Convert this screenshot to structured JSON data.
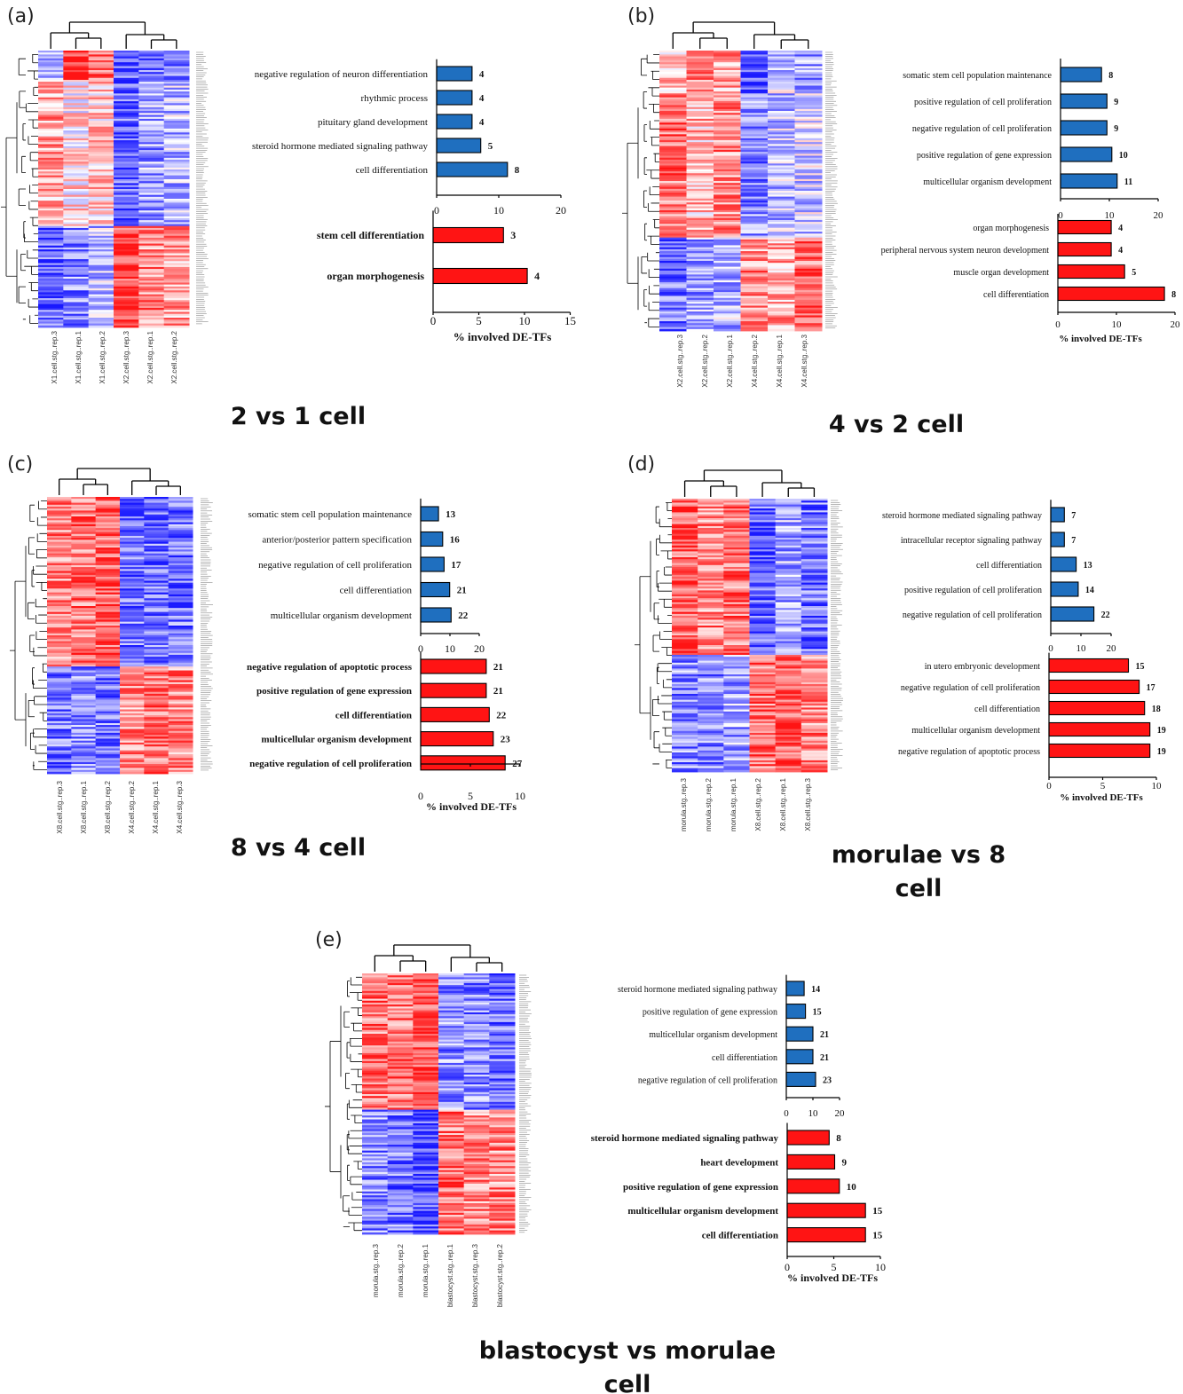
{
  "chart_data": [
    {
      "panel": "(a)",
      "title": "2 vs 1 cell",
      "type": "bar",
      "heatmap_columns": [
        "X1.cell.stg..rep.3",
        "X1.cell.stg..rep.1",
        "X1.cell.stg..rep.2",
        "X2.cell.stg..rep.3",
        "X2.cell.stg..rep.1",
        "X2.cell.stg..rep.2"
      ],
      "blue": {
        "categories": [
          "negative regulation of neuron differentiation",
          "rhythmic process",
          "pituitary gland development",
          "steroid hormone mediated signaling pathway",
          "cell differentiation"
        ],
        "values": [
          4,
          4,
          4,
          5,
          8
        ],
        "pct": [
          5.7,
          5.7,
          5.7,
          7.1,
          11.4
        ],
        "xlim": [
          0,
          20
        ],
        "ticks": [
          0,
          10,
          20
        ]
      },
      "red": {
        "categories": [
          "stem cell differentiation",
          "organ morphogenesis"
        ],
        "values": [
          3,
          4
        ],
        "pct": [
          7.7,
          10.3
        ],
        "xlim": [
          0,
          15
        ],
        "ticks": [
          0,
          5,
          10,
          15
        ]
      },
      "xlabel": "% involved DE-TFs"
    },
    {
      "panel": "(b)",
      "title": "4 vs 2 cell",
      "type": "bar",
      "heatmap_columns": [
        "X2.cell.stg..rep.3",
        "X2.cell.stg..rep.2",
        "X2.cell.stg..rep.1",
        "X4.cell.stg..rep.2",
        "X4.cell.stg..rep.1",
        "X4.cell.stg..rep.3"
      ],
      "blue": {
        "categories": [
          "somatic stem cell population maintenance",
          "positive regulation of cell proliferation",
          "negative regulation of cell proliferation",
          "positive regulation of gene expression",
          "multicellular organism development"
        ],
        "values": [
          8,
          9,
          9,
          10,
          11
        ],
        "pct": [
          8.4,
          9.5,
          9.5,
          10.5,
          11.6
        ],
        "xlim": [
          0,
          20
        ],
        "ticks": [
          0,
          10,
          20
        ]
      },
      "red": {
        "categories": [
          "organ morphogenesis",
          "peripheral nervous system neuron development",
          "muscle organ development",
          "cell differentiation"
        ],
        "values": [
          4,
          4,
          5,
          8
        ],
        "pct": [
          9.1,
          9.1,
          11.4,
          18.2
        ],
        "xlim": [
          0,
          20
        ],
        "ticks": [
          0,
          10,
          20
        ]
      },
      "xlabel": "% involved DE-TFs"
    },
    {
      "panel": "(c)",
      "title": "8 vs 4 cell",
      "type": "bar",
      "heatmap_columns": [
        "X8.cell.stg..rep.3",
        "X8.cell.stg..rep.1",
        "X8.cell.stg..rep.2",
        "X4.cell.stg..rep.2",
        "X4.cell.stg..rep.1",
        "X4.cell.stg..rep.3"
      ],
      "blue": {
        "categories": [
          "somatic stem cell population maintenance",
          "anterior/posterior pattern specification",
          "negative regulation of cell proliferation",
          "cell differentiation",
          "multicellular organism development"
        ],
        "values": [
          13,
          16,
          17,
          21,
          22
        ],
        "pct": [
          6.1,
          7.5,
          8.0,
          9.9,
          10.4
        ],
        "xlim": [
          0,
          20
        ],
        "ticks": [
          0,
          10,
          20
        ]
      },
      "red": {
        "categories": [
          "negative regulation of apoptotic process",
          "positive regulation of gene expression",
          "cell differentiation",
          "multicellular organism development",
          "negative regulation of cell proliferation"
        ],
        "values": [
          21,
          21,
          22,
          23,
          27
        ],
        "pct": [
          6.6,
          6.6,
          6.9,
          7.3,
          8.5
        ],
        "xlim": [
          0,
          10
        ],
        "ticks": [
          0,
          5,
          10
        ]
      },
      "xlabel": "% involved DE-TFs"
    },
    {
      "panel": "(d)",
      "title": "morulae vs 8 cell",
      "type": "bar",
      "heatmap_columns": [
        "morula.stg..rep.3",
        "morula.stg..rep.2",
        "morula.stg..rep.1",
        "X8.cell.stg..rep.2",
        "X8.cell.stg..rep.1",
        "X8.cell.stg..rep.3"
      ],
      "blue": {
        "categories": [
          "steroid hormone mediated signaling pathway",
          "intracellular receptor signaling pathway",
          "cell differentiation",
          "positive regulation of cell proliferation",
          "negative regulation of cell proliferation"
        ],
        "values": [
          7,
          7,
          13,
          14,
          22
        ],
        "pct": [
          4.5,
          4.5,
          8.4,
          9.1,
          14.3
        ],
        "xlim": [
          0,
          20
        ],
        "ticks": [
          0,
          10,
          20
        ]
      },
      "red": {
        "categories": [
          "in utero embryonic development",
          "negative regulation of cell proliferation",
          "cell differentiation",
          "multicellular organism development",
          "negative regulation of apoptotic process"
        ],
        "values": [
          15,
          17,
          18,
          19,
          19
        ],
        "pct": [
          7.4,
          8.4,
          8.9,
          9.4,
          9.4
        ],
        "xlim": [
          0,
          10
        ],
        "ticks": [
          0,
          5,
          10
        ]
      },
      "xlabel": "% involved DE-TFs"
    },
    {
      "panel": "(e)",
      "title": "blastocyst vs morulae cell",
      "type": "bar",
      "heatmap_columns": [
        "morula.stg..rep.3",
        "morula.stg..rep.2",
        "morula.stg..rep.1",
        "blastocyst.stg..rep.1",
        "blastocyst.stg..rep.3",
        "blastocyst.stg..rep.2"
      ],
      "blue": {
        "categories": [
          "steroid hormone mediated signaling pathway",
          "positive regulation of gene expression",
          "multicellular organism development",
          "cell differentiation",
          "negative regulation of cell proliferation"
        ],
        "values": [
          14,
          15,
          21,
          21,
          23
        ],
        "pct": [
          6.7,
          7.2,
          10.0,
          10.0,
          11.0
        ],
        "xlim": [
          0,
          20
        ],
        "ticks": [
          0,
          10,
          20
        ]
      },
      "red": {
        "categories": [
          "steroid hormone mediated signaling pathway",
          "heart development",
          "positive regulation of gene expression",
          "multicellular organism development",
          "cell differentiation"
        ],
        "values": [
          8,
          9,
          10,
          15,
          15
        ],
        "pct": [
          4.5,
          5.1,
          5.6,
          8.4,
          8.4
        ],
        "xlim": [
          0,
          10
        ],
        "ticks": [
          0,
          5,
          10
        ]
      },
      "xlabel": "% involved DE-TFs"
    }
  ],
  "colors": {
    "blue_bar": "#1f6fbf",
    "red_bar": "#ff1414",
    "heat_high": "#ff0000",
    "heat_low": "#1010ff",
    "heat_mid": "#ffffff"
  }
}
